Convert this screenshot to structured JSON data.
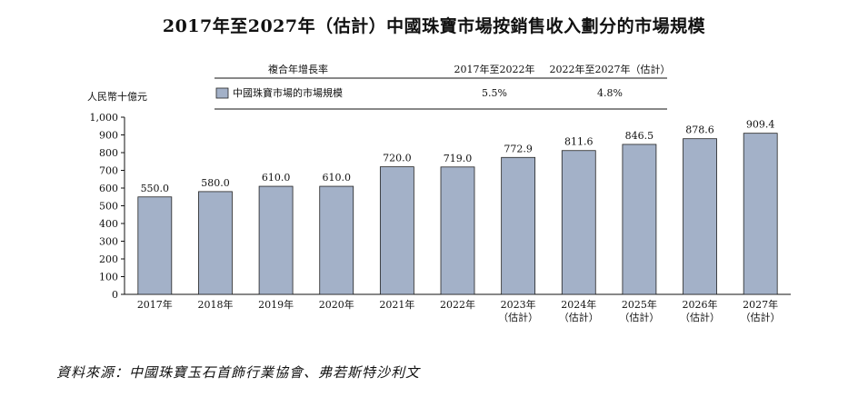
{
  "title": "2017年至2027年（估計）中國珠寶市場按銷售收入劃分的市場規模",
  "source": "資料來源：中國珠寶玉石首飾行業協會、弗若斯特沙利文",
  "cagr_table": {
    "header_label": "複合年增長率",
    "col1_header": "2017年至2022年",
    "col2_header": "2022年至2027年（估計）",
    "row_label": "中國珠寶市場的市場規模",
    "col1_value": "5.5%",
    "col2_value": "4.8%"
  },
  "colors": {
    "bar": "#a3b1c8",
    "bar_stroke": "#222222"
  },
  "chart_data": {
    "type": "bar",
    "title": "2017年至2027年（估計）中國珠寶市場按銷售收入劃分的市場規模",
    "ylabel": "人民幣十億元",
    "xlabel": "",
    "ylim": [
      0,
      1000
    ],
    "yticks": [
      0,
      100,
      200,
      300,
      400,
      500,
      600,
      700,
      800,
      900,
      1000
    ],
    "ytick_labels": [
      "0",
      "100",
      "200",
      "300",
      "400",
      "500",
      "600",
      "700",
      "800",
      "900",
      "1,000"
    ],
    "grid": false,
    "categories": [
      {
        "year": "2017年",
        "note": ""
      },
      {
        "year": "2018年",
        "note": ""
      },
      {
        "year": "2019年",
        "note": ""
      },
      {
        "year": "2020年",
        "note": ""
      },
      {
        "year": "2021年",
        "note": ""
      },
      {
        "year": "2022年",
        "note": ""
      },
      {
        "year": "2023年",
        "note": "（估計）"
      },
      {
        "year": "2024年",
        "note": "（估計）"
      },
      {
        "year": "2025年",
        "note": "（估計）"
      },
      {
        "year": "2026年",
        "note": "（估計）"
      },
      {
        "year": "2027年",
        "note": "（估計）"
      }
    ],
    "values": [
      550.0,
      580.0,
      610.0,
      610.0,
      720.0,
      719.0,
      772.9,
      811.6,
      846.5,
      878.6,
      909.4
    ],
    "value_labels": [
      "550.0",
      "580.0",
      "610.0",
      "610.0",
      "720.0",
      "719.0",
      "772.9",
      "811.6",
      "846.5",
      "878.6",
      "909.4"
    ]
  }
}
